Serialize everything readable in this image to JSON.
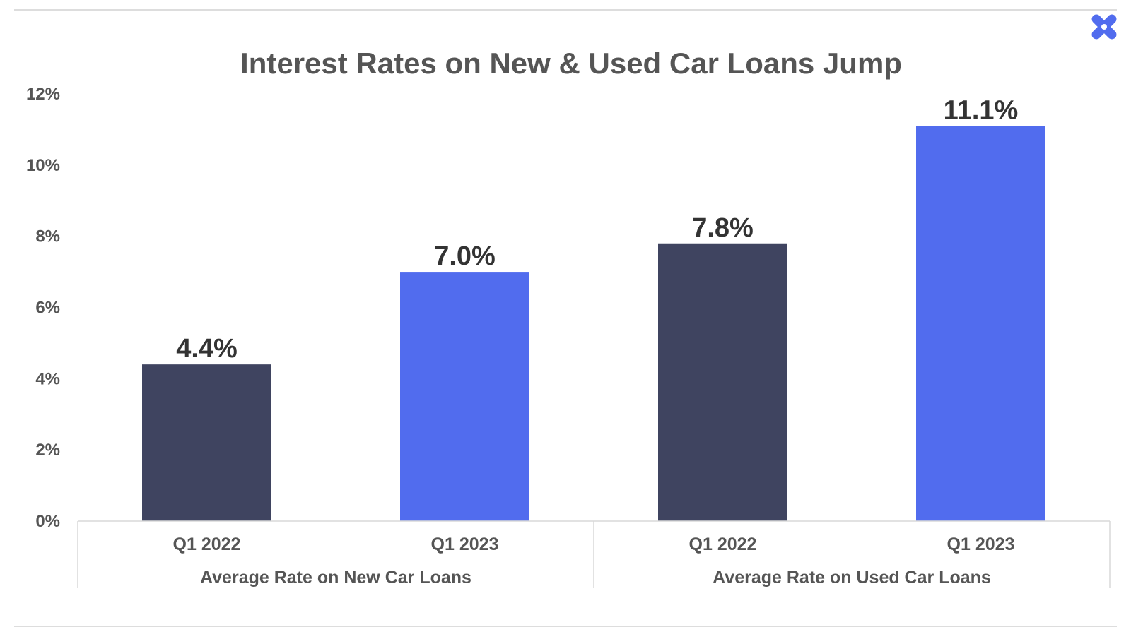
{
  "chart_data": {
    "type": "bar",
    "title": "Interest Rates on New & Used Car Loans Jump",
    "xlabel": "",
    "ylabel": "",
    "ylim": [
      0,
      12
    ],
    "y_ticks": [
      0,
      2,
      4,
      6,
      8,
      10,
      12
    ],
    "y_tick_labels": [
      "0%",
      "2%",
      "4%",
      "6%",
      "8%",
      "10%",
      "12%"
    ],
    "groups": [
      "Average Rate on New Car Loans",
      "Average Rate on Used Car Loans"
    ],
    "categories": [
      "Q1 2022",
      "Q1 2023",
      "Q1 2022",
      "Q1 2023"
    ],
    "values": [
      4.4,
      7.0,
      7.8,
      11.1
    ],
    "value_labels": [
      "4.4%",
      "7.0%",
      "7.8%",
      "11.1%"
    ],
    "bar_colors": [
      "#3f4460",
      "#516cee",
      "#3f4460",
      "#516cee"
    ],
    "grid": false,
    "legend": "none"
  },
  "brand": {
    "logo_icon": "x-logo-icon",
    "color": "#516cee"
  }
}
